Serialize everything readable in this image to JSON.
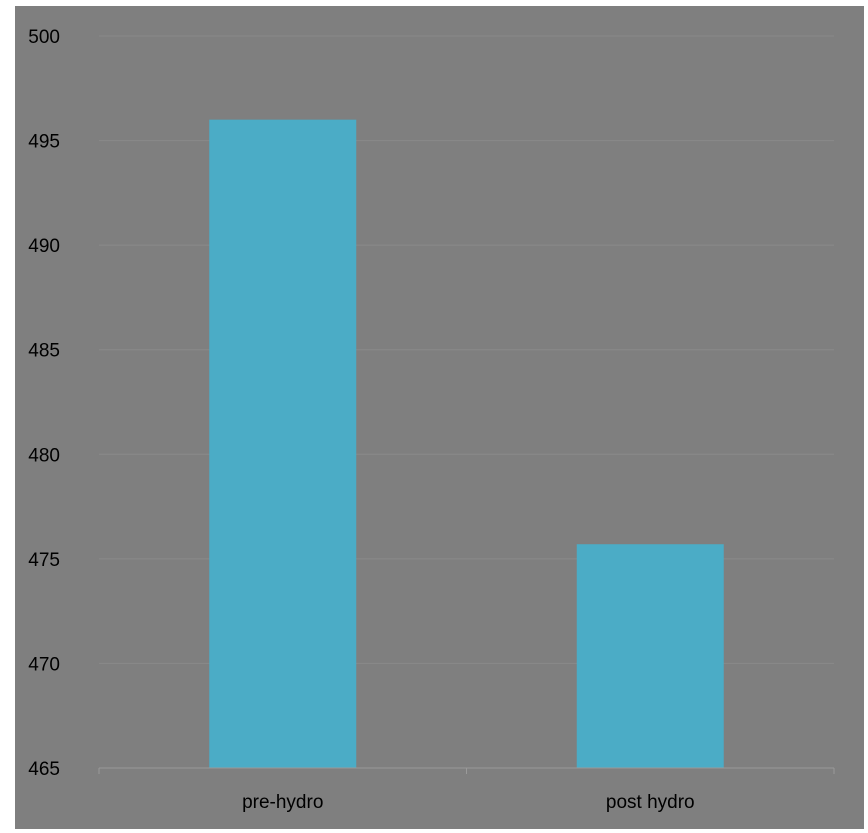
{
  "chart_data": {
    "type": "bar",
    "categories": [
      "pre-hydro",
      "post hydro"
    ],
    "values": [
      496,
      475.7
    ],
    "title": "",
    "xlabel": "",
    "ylabel": "",
    "ylim": [
      465,
      500
    ],
    "yticks": [
      465,
      470,
      475,
      480,
      485,
      490,
      495,
      500
    ],
    "grid": true,
    "legend": "none",
    "colors": {
      "bar": "#4bacc6",
      "background": "#7f7f7f",
      "grid": "#8a8a8a",
      "axis": "#9a9a9a",
      "text": "#000000"
    }
  }
}
